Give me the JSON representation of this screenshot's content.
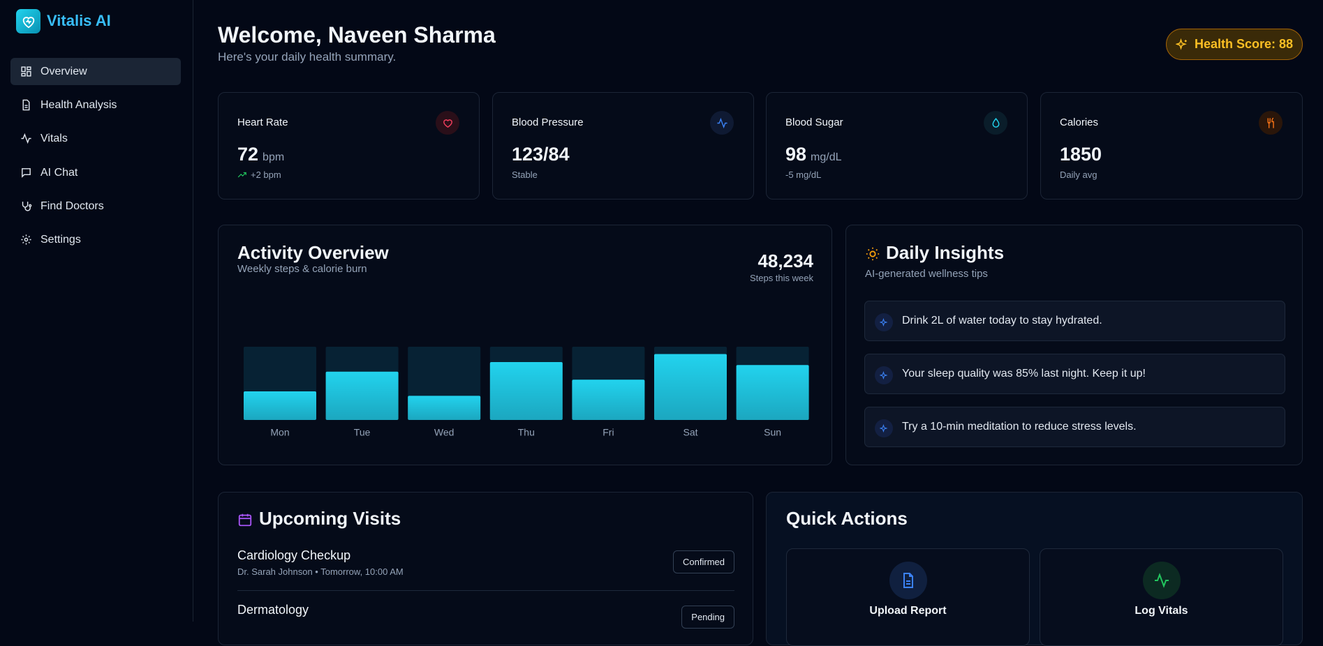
{
  "sidebar": {
    "brand": "Vitalis AI",
    "nav": [
      "Overview",
      "Health Analysis",
      "Vitals",
      "AI Chat",
      "Find Doctors",
      "Settings"
    ]
  },
  "header": {
    "title": "Welcome, Naveen Sharma",
    "subtitle": "Here's your daily health summary.",
    "health_score": "Health Score: 88"
  },
  "stats": [
    {
      "label": "Heart Rate",
      "value": "72",
      "unit": "bpm",
      "change": "+2 bpm"
    },
    {
      "label": "Blood Pressure",
      "value": "123/84",
      "change": "Stable"
    },
    {
      "label": "Blood Sugar",
      "value": "98",
      "unit": "mg/dL",
      "change": "-5 mg/dL"
    },
    {
      "label": "Calories",
      "value": "1850",
      "change": "Daily avg"
    }
  ],
  "activity": {
    "title": "Activity Overview",
    "subtitle": "Weekly steps & calorie burn",
    "total": "48,234",
    "total_label": "Steps this week",
    "chart": {
      "type": "bar",
      "categories": [
        "Mon",
        "Tue",
        "Wed",
        "Thu",
        "Fri",
        "Sat",
        "Sun"
      ],
      "values": [
        39,
        66,
        33,
        79,
        55,
        90,
        75
      ],
      "ylim": [
        0,
        100
      ],
      "color": "#22d3ee",
      "track_color": "#072234"
    }
  },
  "insights": {
    "title": "Daily Insights",
    "subtitle": "AI-generated wellness tips",
    "items": [
      "Drink 2L of water today to stay hydrated.",
      "Your sleep quality was 85% last night. Keep it up!",
      "Try a 10-min meditation to reduce stress levels."
    ]
  },
  "visits": {
    "title": "Upcoming Visits",
    "items": [
      {
        "title": "Cardiology Checkup",
        "detail": "Dr. Sarah Johnson • Tomorrow, 10:00 AM",
        "status": "Confirmed"
      },
      {
        "title": "Dermatology",
        "status": "Pending"
      }
    ]
  },
  "quick_actions": {
    "title": "Quick Actions",
    "items": [
      "Upload Report",
      "Log Vitals"
    ]
  }
}
